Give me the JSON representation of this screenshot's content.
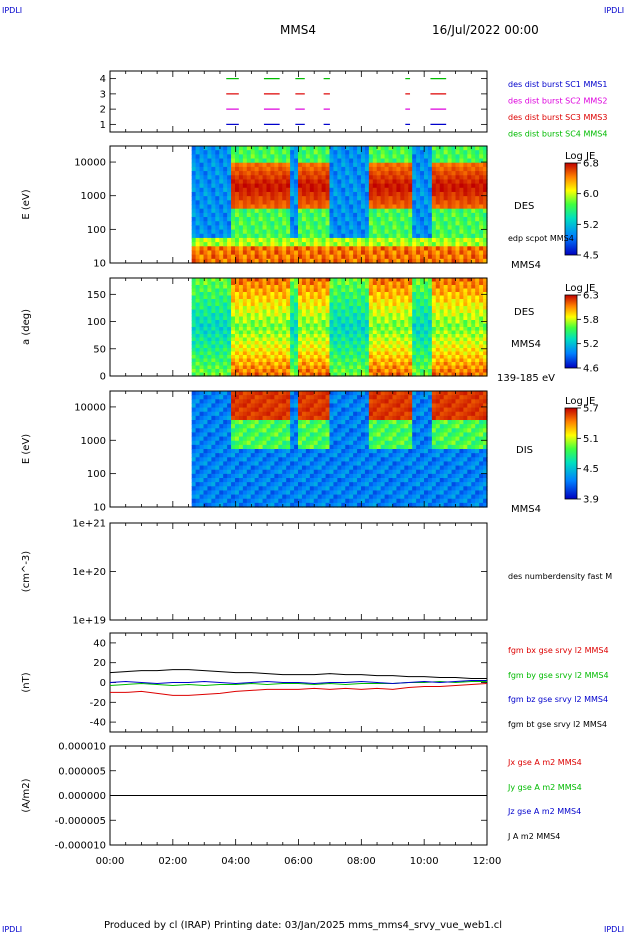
{
  "corners": {
    "tl": "IPDLI",
    "tr": "IPDLI",
    "bl": "IPDLI",
    "br": "IPDLI"
  },
  "header": {
    "spacecraft": "MMS4",
    "date": "16/Jul/2022 00:00"
  },
  "footer": "Produced by cl (IRAP)   Printing date: 03/Jan/2025   mms_mms4_srvy_vue_web1.cl",
  "colors": {
    "red": "#dd0000",
    "green": "#00bb00",
    "blue": "#0000cc",
    "magenta": "#dd00dd",
    "black": "#000000"
  },
  "chart_data": [
    {
      "type": "line",
      "panel": "burst-availability",
      "ylim": [
        0.5,
        4.5
      ],
      "yticks": [
        "1",
        "2",
        "3",
        "4"
      ],
      "series": [
        {
          "name": "des dist burst SC1 MMS1",
          "level": 1,
          "color": "#0000cc",
          "intervals": [
            [
              3.7,
              4.1
            ],
            [
              4.9,
              5.4
            ],
            [
              5.9,
              6.2
            ],
            [
              6.8,
              7.0
            ],
            [
              9.4,
              9.55
            ],
            [
              10.2,
              10.7
            ]
          ]
        },
        {
          "name": "des dist burst SC2 MMS2",
          "level": 2,
          "color": "#dd00dd",
          "intervals": [
            [
              3.7,
              4.1
            ],
            [
              4.9,
              5.4
            ],
            [
              5.9,
              6.2
            ],
            [
              6.8,
              7.0
            ],
            [
              9.4,
              9.55
            ],
            [
              10.2,
              10.7
            ]
          ]
        },
        {
          "name": "des dist burst SC3 MMS3",
          "level": 3,
          "color": "#dd0000",
          "intervals": [
            [
              3.7,
              4.1
            ],
            [
              4.9,
              5.4
            ],
            [
              5.9,
              6.2
            ],
            [
              6.8,
              7.0
            ],
            [
              9.4,
              9.55
            ],
            [
              10.2,
              10.7
            ]
          ]
        },
        {
          "name": "des dist burst SC4 MMS4",
          "level": 4,
          "color": "#00bb00",
          "intervals": [
            [
              3.7,
              4.1
            ],
            [
              4.9,
              5.4
            ],
            [
              5.9,
              6.2
            ],
            [
              6.8,
              7.0
            ],
            [
              9.4,
              9.55
            ],
            [
              10.2,
              10.7
            ]
          ]
        }
      ]
    },
    {
      "type": "heatmap",
      "panel": "des-energy",
      "ylabel": "E (eV)",
      "yscale": "log",
      "ylim": [
        10,
        30000
      ],
      "yticks": [
        "10",
        "100",
        "1000",
        "10000"
      ],
      "data_start_hour": 2.6,
      "high_energy_intervals": [
        [
          3.85,
          5.7
        ],
        [
          6.0,
          7.0
        ],
        [
          8.2,
          9.6
        ],
        [
          10.2,
          12.0
        ]
      ],
      "side_labels": [
        "DES",
        "edp scpot MMS4",
        "MMS4"
      ],
      "colorbar": {
        "title": "Log JE",
        "ticks": [
          "6.8",
          "6.0",
          "5.2",
          "4.5"
        ]
      }
    },
    {
      "type": "heatmap",
      "panel": "des-pitch",
      "ylabel": "a (deg)",
      "ylim": [
        0,
        180
      ],
      "yticks": [
        "0",
        "50",
        "100",
        "150"
      ],
      "data_start_hour": 2.6,
      "side_labels": [
        "DES",
        "MMS4",
        "139-185 eV"
      ],
      "colorbar": {
        "title": "Log JE",
        "ticks": [
          "6.3",
          "5.8",
          "5.2",
          "4.6"
        ]
      }
    },
    {
      "type": "heatmap",
      "panel": "dis-energy",
      "ylabel": "E (eV)",
      "yscale": "log",
      "ylim": [
        10,
        30000
      ],
      "yticks": [
        "10",
        "100",
        "1000",
        "10000"
      ],
      "data_start_hour": 2.6,
      "side_labels": [
        "DIS",
        "MMS4"
      ],
      "colorbar": {
        "title": "Log JE",
        "ticks": [
          "5.7",
          "5.1",
          "4.5",
          "3.9"
        ]
      }
    },
    {
      "type": "line",
      "panel": "density",
      "ylabel": "(cm^-3)",
      "yscale": "log",
      "yticks": [
        "1e+19",
        "1e+20",
        "1e+21"
      ],
      "series_labels": [
        "des numberdensity fast M"
      ]
    },
    {
      "type": "line",
      "panel": "fgm",
      "ylabel": "(nT)",
      "ylim": [
        -50,
        50
      ],
      "yticks": [
        "-40",
        "-20",
        "0",
        "20",
        "40"
      ],
      "x_hours": [
        0.0,
        0.5,
        1.0,
        1.5,
        2.0,
        2.5,
        3.0,
        3.5,
        4.0,
        4.5,
        5.0,
        5.5,
        6.0,
        6.5,
        7.0,
        7.5,
        8.0,
        8.5,
        9.0,
        9.5,
        10.0,
        10.5,
        11.0,
        11.5,
        12.0
      ],
      "series": [
        {
          "name": "fgm bx gse srvy l2 MMS4",
          "color": "#dd0000",
          "values": [
            -10,
            -10,
            -9,
            -11,
            -13,
            -13,
            -12,
            -11,
            -9,
            -8,
            -7,
            -7,
            -7,
            -6,
            -7,
            -6,
            -7,
            -6,
            -7,
            -5,
            -4,
            -4,
            -3,
            -2,
            -1
          ]
        },
        {
          "name": "fgm by gse srvy l2 MMS4",
          "color": "#00bb00",
          "values": [
            -3,
            -2,
            -1,
            -2,
            -3,
            -2,
            -3,
            -2,
            -2,
            -1,
            -2,
            -1,
            -1,
            -2,
            -1,
            -2,
            -1,
            -1,
            -1,
            0,
            0,
            1,
            0,
            1,
            1
          ]
        },
        {
          "name": "fgm bz gse srvy l2 MMS4",
          "color": "#0000cc",
          "values": [
            0,
            1,
            0,
            -1,
            0,
            0,
            1,
            0,
            -1,
            0,
            1,
            0,
            0,
            -1,
            0,
            0,
            1,
            0,
            -1,
            0,
            1,
            0,
            1,
            2,
            2
          ]
        },
        {
          "name": "fgm bt gse srvy l2 MMS4",
          "color": "#000000",
          "values": [
            10,
            11,
            12,
            12,
            13,
            13,
            12,
            11,
            10,
            10,
            9,
            8,
            8,
            8,
            9,
            8,
            8,
            7,
            7,
            6,
            6,
            5,
            5,
            4,
            4
          ]
        }
      ]
    },
    {
      "type": "line",
      "panel": "current",
      "ylabel": "(A/m2)",
      "ylim": [
        -1e-05,
        1e-05
      ],
      "yticks": [
        "-0.000010",
        "-0.000005",
        "0.000000",
        "0.000005",
        "0.000010"
      ],
      "series": [
        {
          "name": "Jx gse A m2 MMS4",
          "color": "#dd0000"
        },
        {
          "name": "Jy gse A m2 MMS4",
          "color": "#00bb00"
        },
        {
          "name": "Jz gse A m2 MMS4",
          "color": "#0000cc"
        },
        {
          "name": "J A m2 MMS4",
          "color": "#000000"
        }
      ]
    }
  ],
  "xaxis": {
    "ticks": [
      "00:00",
      "02:00",
      "04:00",
      "06:00",
      "08:00",
      "10:00",
      "12:00"
    ],
    "xlim_hours": [
      0,
      12
    ]
  }
}
